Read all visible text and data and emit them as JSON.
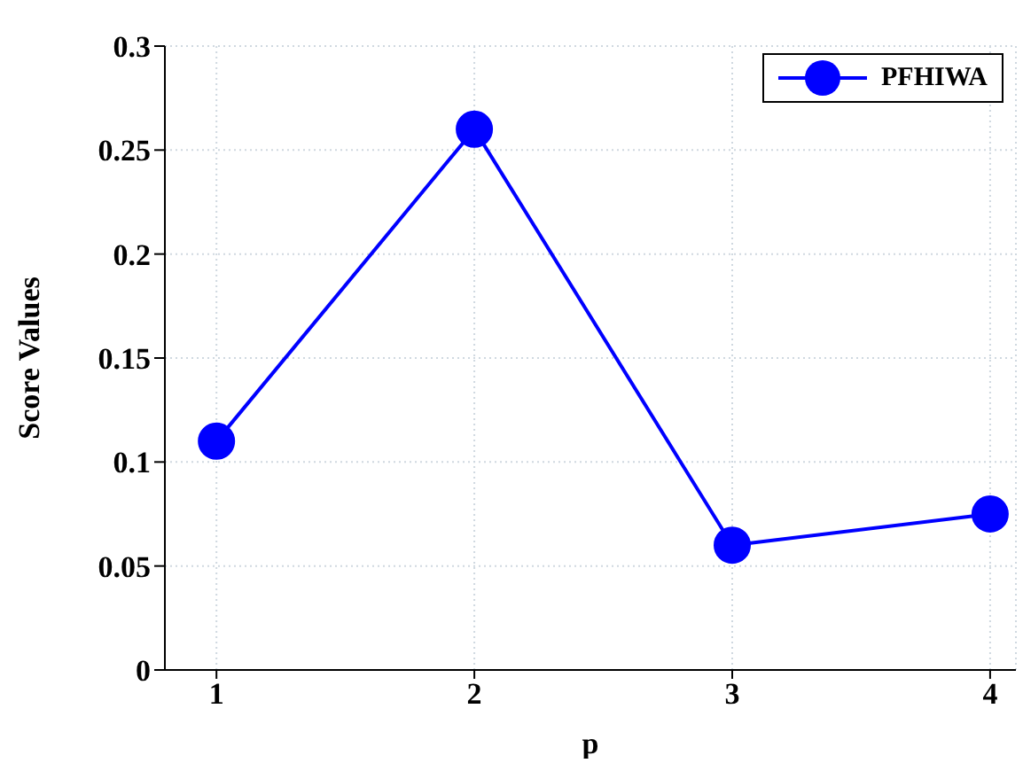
{
  "chart_data": {
    "type": "line",
    "xlabel": "p",
    "ylabel": "Score Values",
    "x": [
      1,
      2,
      3,
      4
    ],
    "series": [
      {
        "name": "PFHIWA",
        "color": "#0000ff",
        "values": [
          0.11,
          0.26,
          0.06,
          0.075
        ]
      }
    ],
    "xlim": [
      0.8,
      4.1
    ],
    "xticks": [
      1,
      2,
      3,
      4
    ],
    "ylim": [
      0,
      0.3
    ],
    "yticks": [
      0,
      0.05,
      0.1,
      0.15,
      0.2,
      0.25,
      0.3
    ],
    "grid": true,
    "legend": "top right",
    "marker": "circle",
    "line_style": "solid"
  }
}
